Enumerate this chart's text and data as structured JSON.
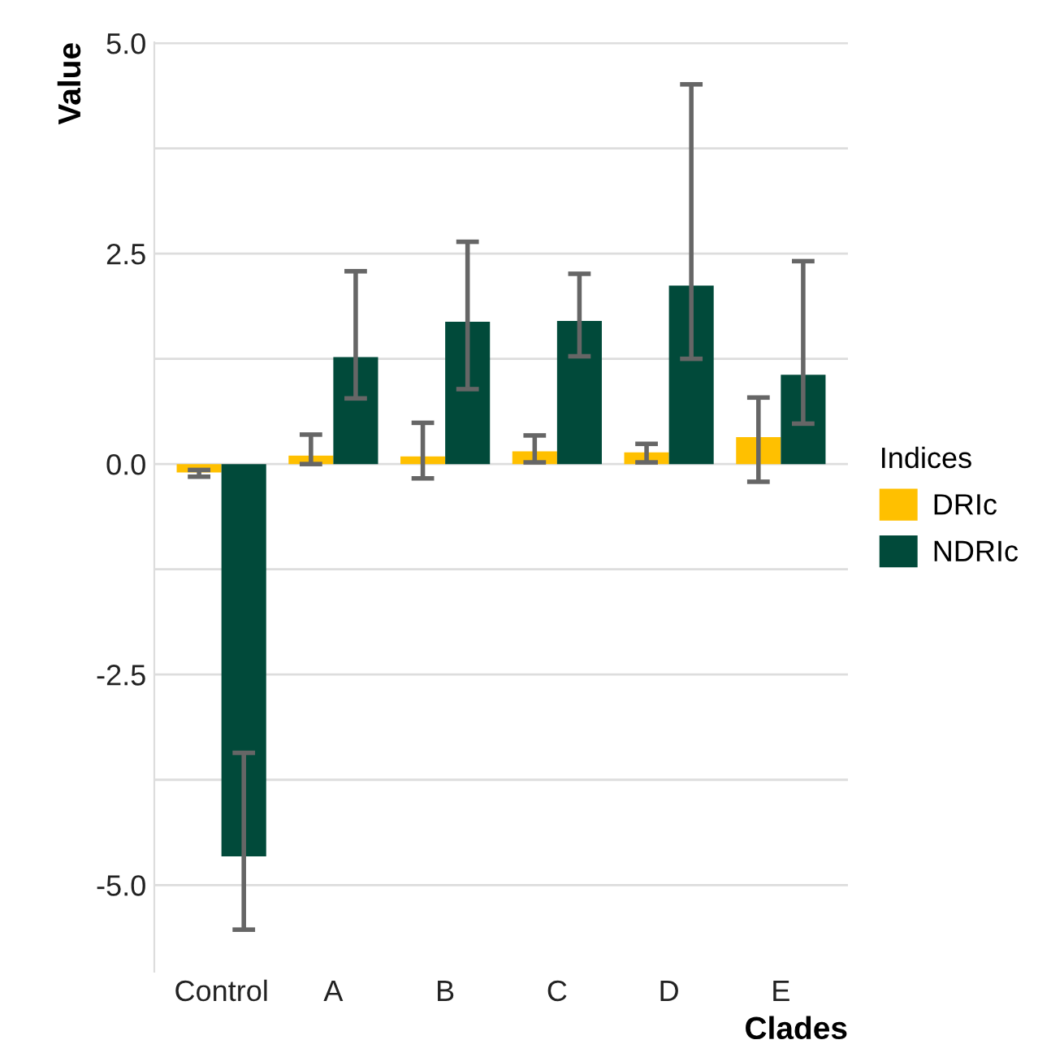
{
  "chart_data": {
    "type": "bar",
    "xlabel": "Clades",
    "ylabel": "Value",
    "legend_title": "Indices",
    "categories": [
      "Control",
      "A",
      "B",
      "C",
      "D",
      "E"
    ],
    "series": [
      {
        "name": "DRIc",
        "color": "#ffc000",
        "values": [
          -0.1,
          0.1,
          0.09,
          0.15,
          0.14,
          0.32
        ],
        "errors": [
          [
            -0.15,
            -0.07
          ],
          [
            0.0,
            0.35
          ],
          [
            -0.17,
            0.49
          ],
          [
            0.02,
            0.34
          ],
          [
            0.02,
            0.24
          ],
          [
            -0.21,
            0.79
          ]
        ]
      },
      {
        "name": "NDRIc",
        "color": "#014a3a",
        "values": [
          -4.66,
          1.27,
          1.69,
          1.7,
          2.12,
          1.06
        ],
        "errors": [
          [
            -5.53,
            -3.43
          ],
          [
            0.78,
            2.29
          ],
          [
            0.89,
            2.64
          ],
          [
            1.28,
            2.26
          ],
          [
            1.25,
            4.51
          ],
          [
            0.48,
            2.41
          ]
        ]
      }
    ],
    "ylim": [
      -6.03,
      5.01
    ],
    "yticks": [
      {
        "value": -5.0,
        "label": "-5.0"
      },
      {
        "value": -3.75,
        "label": null
      },
      {
        "value": -2.5,
        "label": "-2.5"
      },
      {
        "value": -1.25,
        "label": null
      },
      {
        "value": 0.0,
        "label": "0.0"
      },
      {
        "value": 1.25,
        "label": null
      },
      {
        "value": 2.5,
        "label": "2.5"
      },
      {
        "value": 3.75,
        "label": null
      },
      {
        "value": 5.0,
        "label": "5.0"
      }
    ],
    "grid": "y",
    "legend": "right"
  }
}
